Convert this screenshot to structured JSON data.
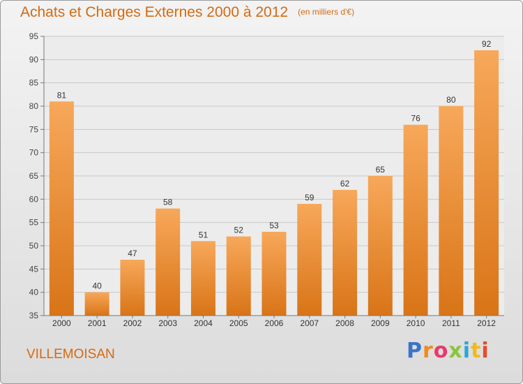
{
  "title": "Achats et Charges Externes 2000 à 2012",
  "subtitle": "(en milliers d'€)",
  "location": "VILLEMOISAN",
  "logo": {
    "text": "Proxiti",
    "letter_colors": [
      "#3a74c8",
      "#f08a1c",
      "#e83a6a",
      "#8cc43c",
      "#2aa6d8",
      "#f3b81d",
      "#e84a2c"
    ]
  },
  "colors": {
    "bar_top": "#f7a85a",
    "bar_bottom": "#d97417",
    "title": "#d46a12",
    "grid": "#c8c8c8"
  },
  "chart_data": {
    "type": "bar",
    "title": "Achats et Charges Externes 2000 à 2012",
    "subtitle": "(en milliers d'€)",
    "categories": [
      "2000",
      "2001",
      "2002",
      "2003",
      "2004",
      "2005",
      "2006",
      "2007",
      "2008",
      "2009",
      "2010",
      "2011",
      "2012"
    ],
    "values": [
      81,
      40,
      47,
      58,
      51,
      52,
      53,
      59,
      62,
      65,
      76,
      80,
      92
    ],
    "ylim": [
      35,
      95
    ],
    "yticks": [
      35,
      40,
      45,
      50,
      55,
      60,
      65,
      70,
      75,
      80,
      85,
      90,
      95
    ],
    "grid": true,
    "data_labels": true
  }
}
